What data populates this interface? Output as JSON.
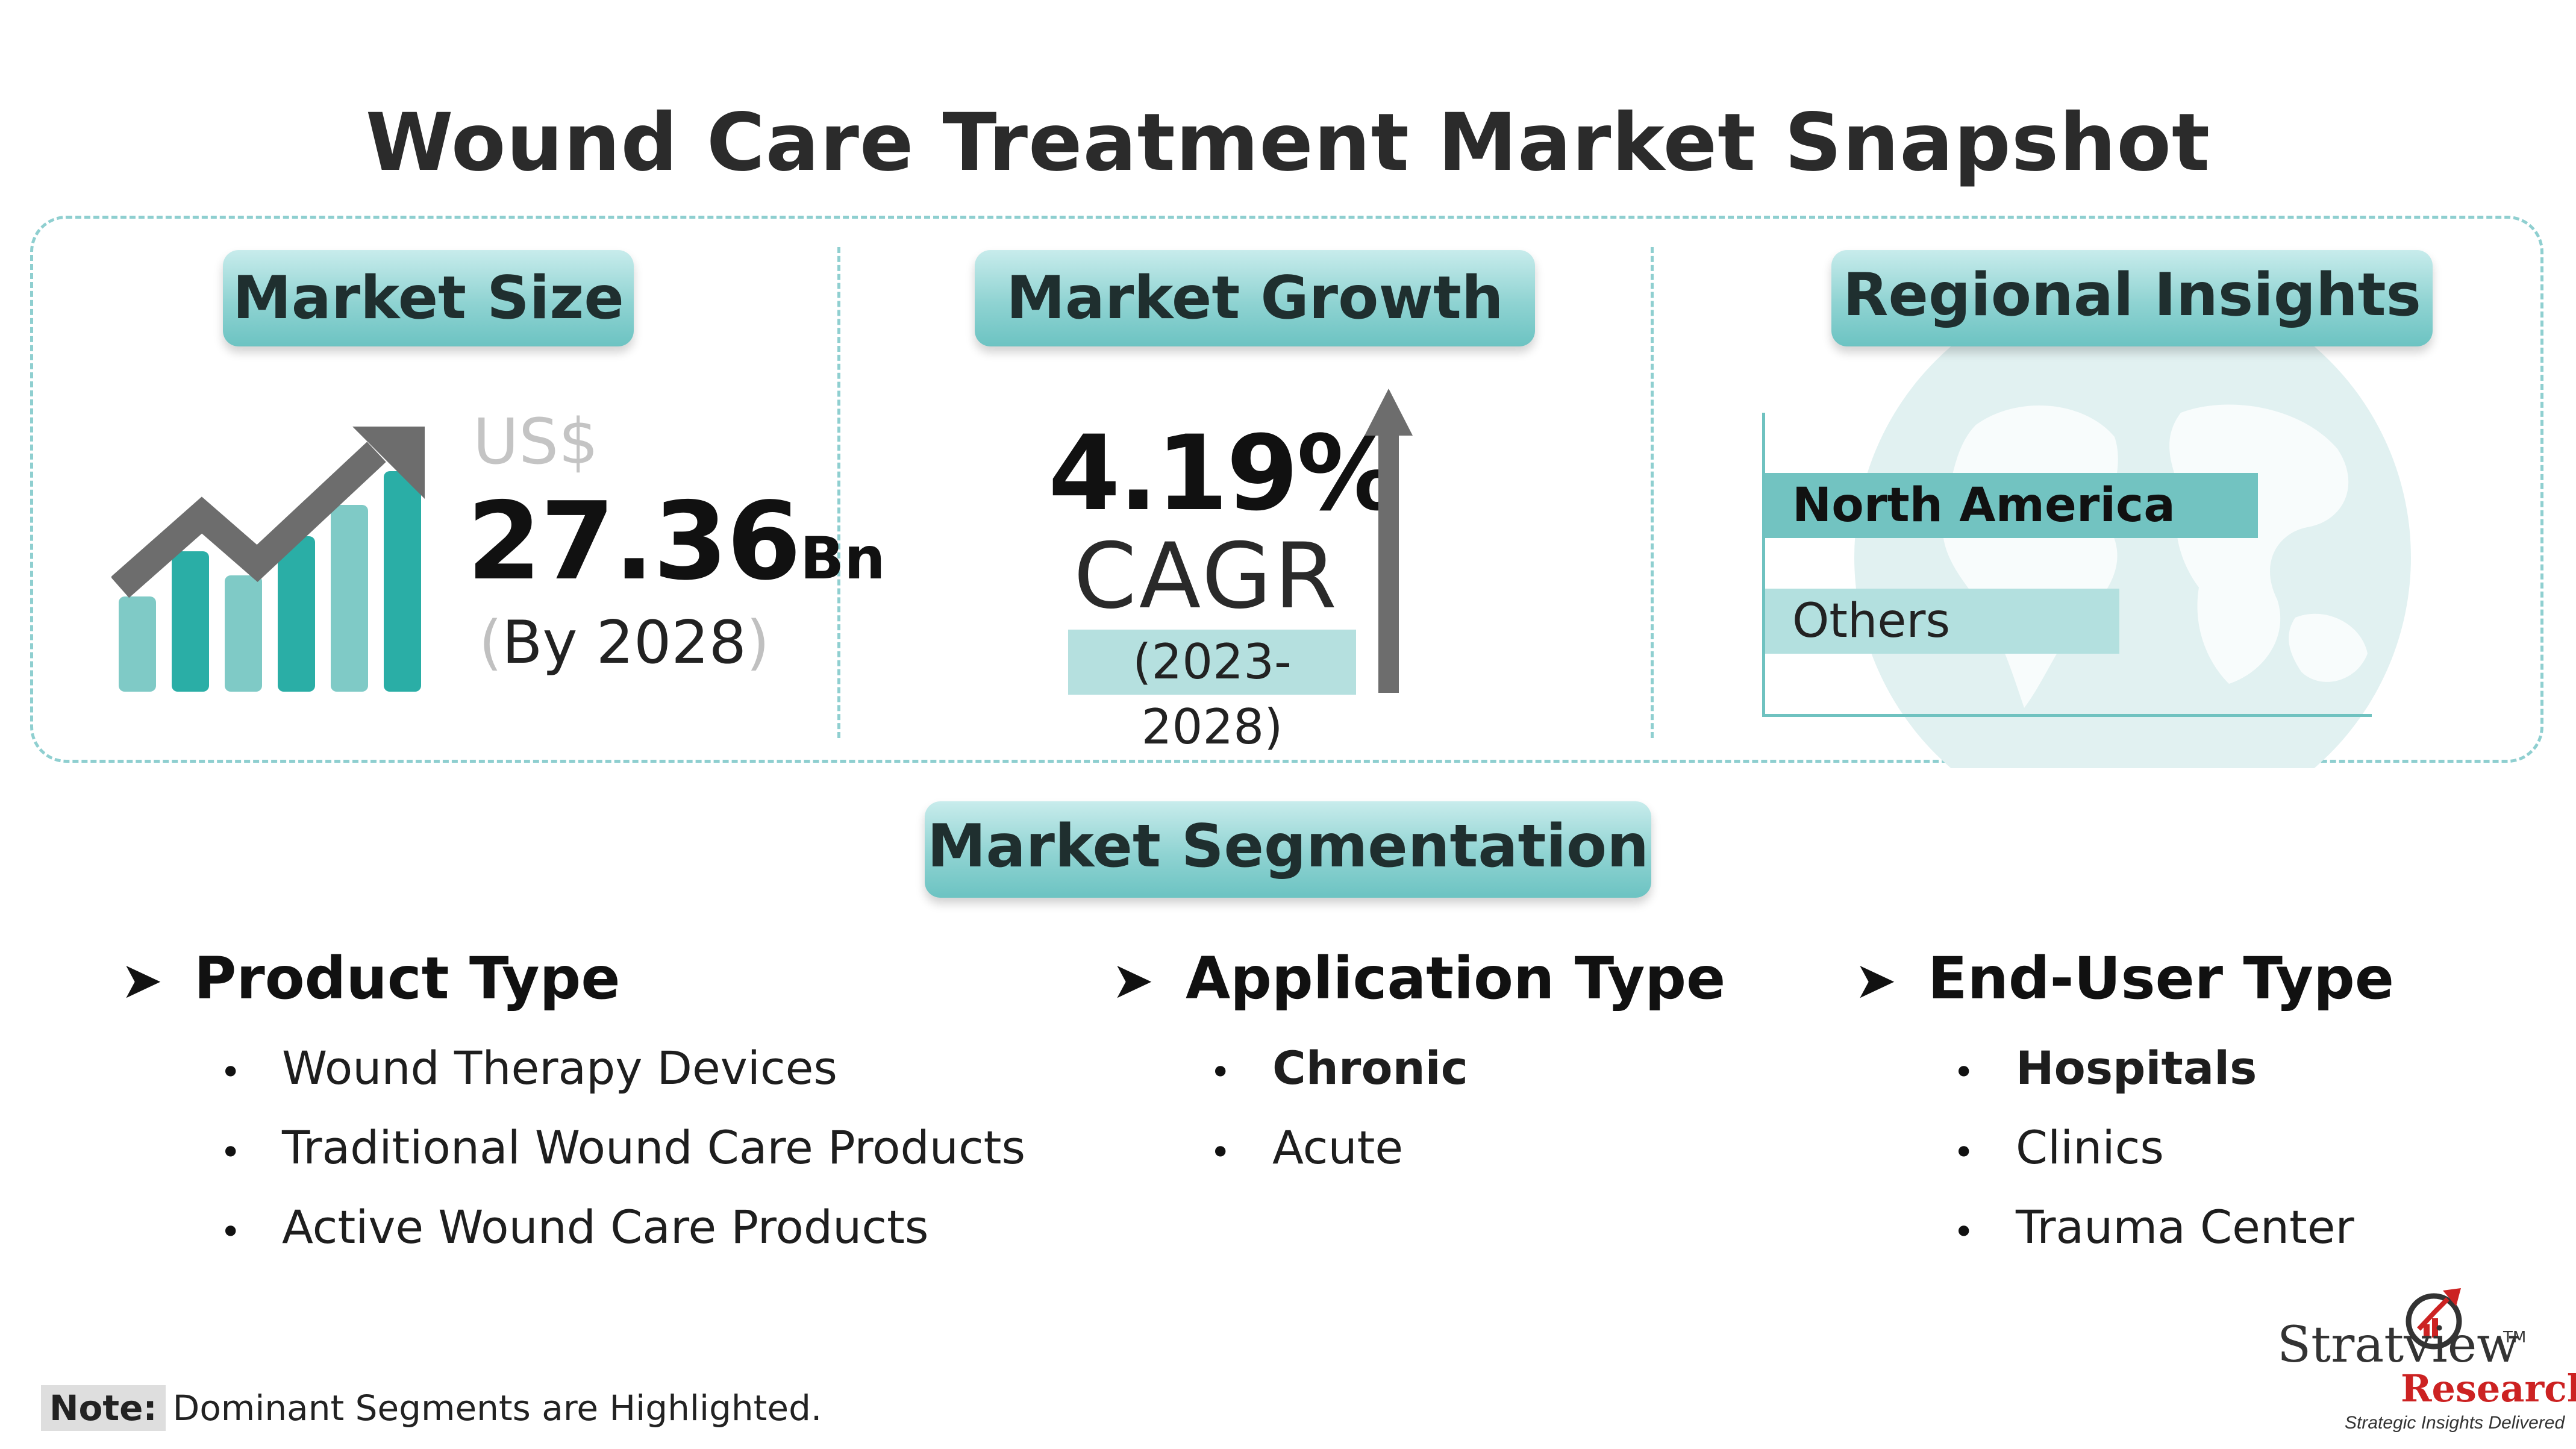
{
  "title": "Wound Care Treatment Market Snapshot",
  "market_size": {
    "header": "Market Size",
    "currency": "US$",
    "value": "27.36",
    "unit": "Bn",
    "paren_open": "(",
    "by_year": "By 2028",
    "paren_close": ")"
  },
  "market_growth": {
    "header": "Market Growth",
    "value": "4.19%",
    "metric": "CAGR",
    "period": "(2023-2028)"
  },
  "regional_insights": {
    "header": "Regional Insights",
    "bars": [
      {
        "label": "North America",
        "color": "#72c3c1"
      },
      {
        "label": "Others",
        "color": "#b3e0df"
      }
    ]
  },
  "segmentation": {
    "header": "Market Segmentation",
    "groups": [
      {
        "title": "Product Type",
        "items": [
          "Wound Therapy Devices",
          "Traditional Wound Care Products",
          "Active Wound Care Products"
        ]
      },
      {
        "title": "Application Type",
        "items": [
          "Chronic",
          "Acute"
        ]
      },
      {
        "title": "End-User Type",
        "items": [
          "Hospitals",
          "Clinics",
          "Trauma Center"
        ]
      }
    ]
  },
  "note": {
    "label": "Note:",
    "text": "Dominant Segments are Highlighted."
  },
  "logo": {
    "name": "Stratview",
    "tm": "TM",
    "sub": "Research",
    "tagline": "Strategic Insights Delivered"
  },
  "colors": {
    "accent_teal": "#2aaea6",
    "light_teal": "#7fcac6",
    "dashed_border": "#8fcfd0",
    "dark_gray": "#6d6d6d",
    "brand_red": "#cc2222"
  },
  "icons": [
    "growth-chart-icon",
    "up-arrow-icon",
    "globe-icon",
    "arrow-bullet-icon",
    "logo-icon"
  ]
}
